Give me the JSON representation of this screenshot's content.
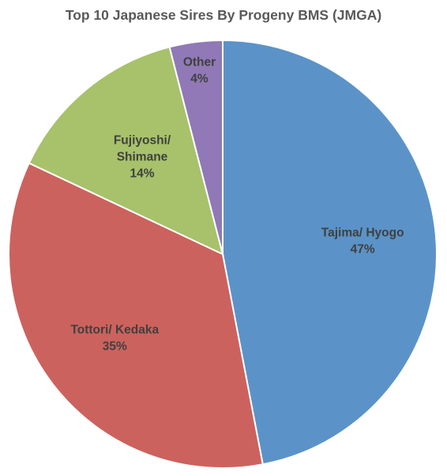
{
  "chart_data": {
    "type": "pie",
    "title": "Top 10 Japanese Sires By Progeny BMS (JMGA)",
    "categories": [
      "Tajima/ Hyogo",
      "Tottori/ Kedaka",
      "Fujiyoshi/ Shimane",
      "Other"
    ],
    "values": [
      47,
      35,
      14,
      4
    ],
    "labels": [
      [
        "Tajima/ Hyogo",
        "47%"
      ],
      [
        "Tottori/ Kedaka",
        "35%"
      ],
      [
        "Fujiyoshi/",
        "Shimane",
        "14%"
      ],
      [
        "Other",
        "4%"
      ]
    ],
    "colors": [
      "#5B93C8",
      "#CC625D",
      "#A7C26A",
      "#9079B6"
    ],
    "start_angle_deg": 0,
    "direction": "clockwise",
    "legend": "none"
  }
}
